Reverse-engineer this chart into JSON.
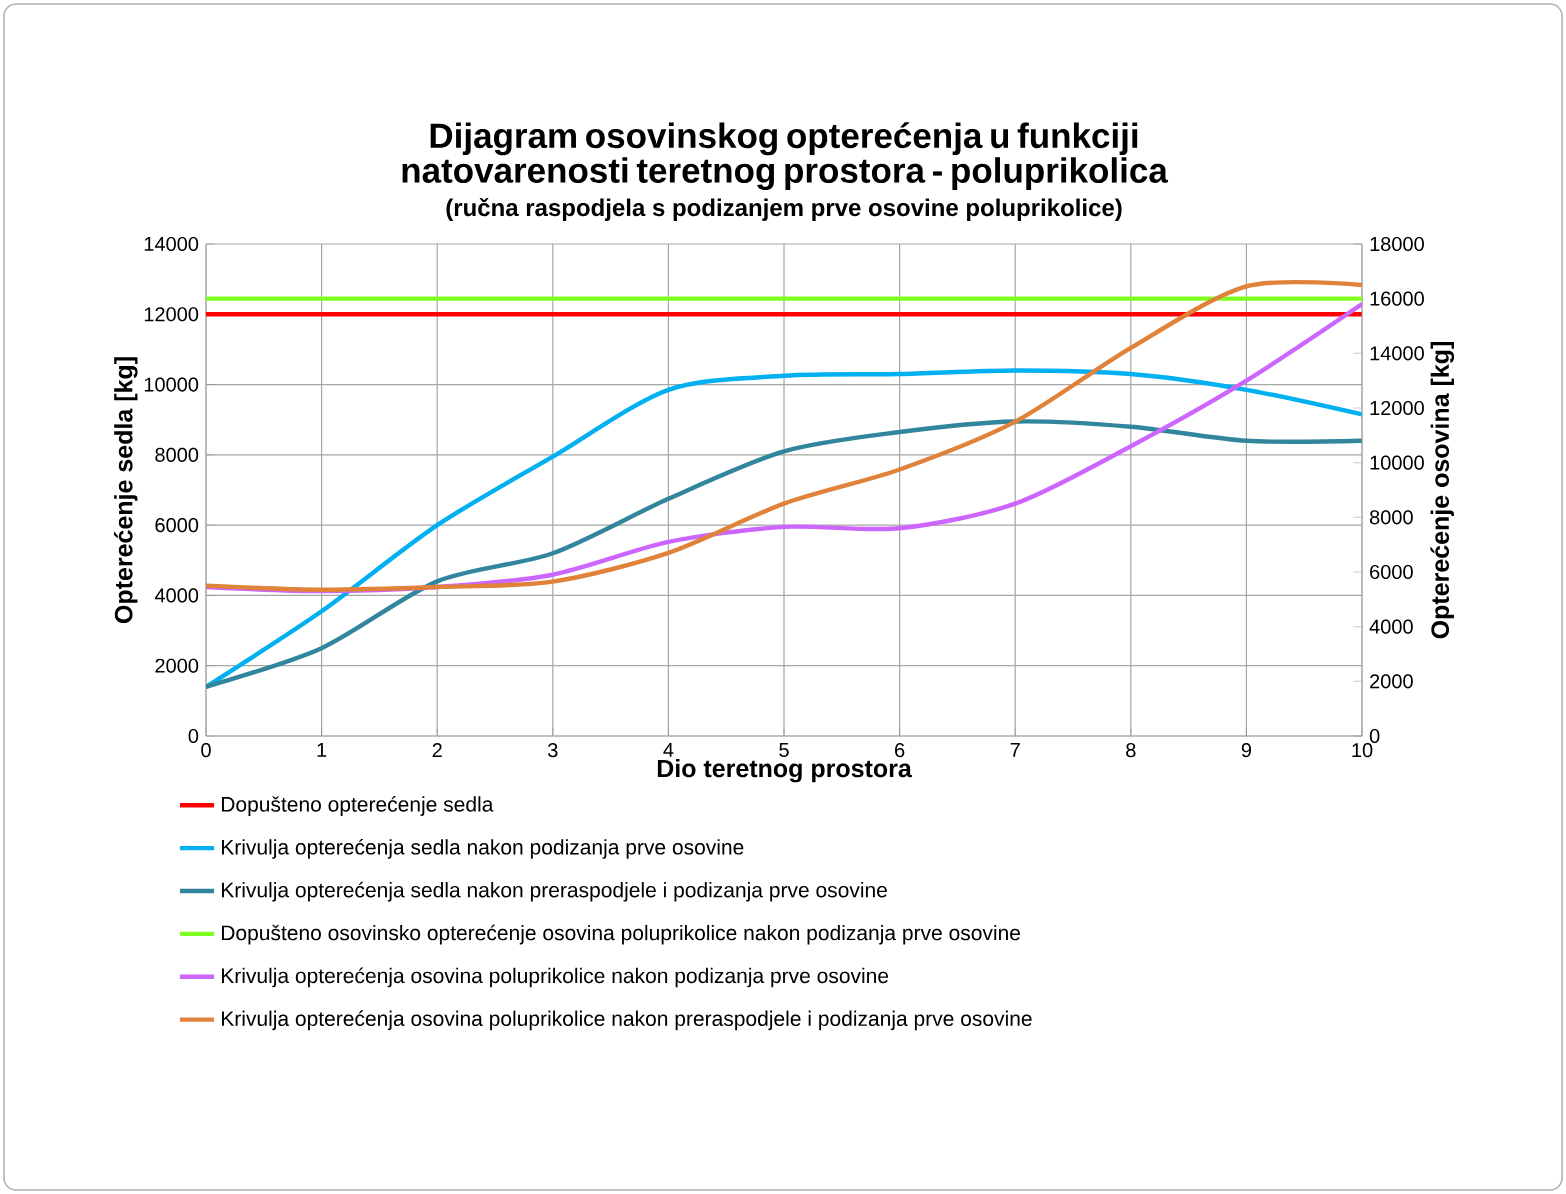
{
  "chart_data": {
    "type": "line",
    "title": "Dijagram osovinskog opterećenja u funkciji natovarenosti teretnog prostora - poluprikolica",
    "subtitle": "(ručna raspodjela s podizanjem prve osovine poluprikolice)",
    "xlabel": "Dio teretnog prostora",
    "ylabel": "Opterećenje sedla [kg]",
    "y2label": "Opterećenje osovina [kg]",
    "x": [
      0,
      1,
      2,
      3,
      4,
      5,
      6,
      7,
      8,
      9,
      10
    ],
    "xlim": [
      0,
      10
    ],
    "xticks": [
      0,
      1,
      2,
      3,
      4,
      5,
      6,
      7,
      8,
      9,
      10
    ],
    "ylim": [
      0,
      14000
    ],
    "yticks": [
      0,
      2000,
      4000,
      6000,
      8000,
      10000,
      12000,
      14000
    ],
    "y2lim": [
      0,
      18000
    ],
    "y2ticks": [
      0,
      2000,
      4000,
      6000,
      8000,
      10000,
      12000,
      14000,
      16000,
      18000
    ],
    "grid": true,
    "legend": "bottom",
    "marker": "none",
    "line_style": "solid",
    "series": [
      {
        "name": "Dopušteno opterećenje sedla",
        "color": "#ff0000",
        "values": [
          12000,
          12000,
          12000,
          12000,
          12000,
          12000,
          12000,
          12000,
          12000,
          12000,
          12000
        ]
      },
      {
        "name": "Krivulja opterećenja sedla nakon podizanja prve osovine",
        "color": "#00b0f0",
        "values": [
          1400,
          3550,
          6000,
          7950,
          9850,
          10250,
          10300,
          10400,
          10300,
          9850,
          9150
        ]
      },
      {
        "name": "Krivulja opterećenja sedla nakon preraspodjele i podizanja prve osovine",
        "color": "#31859c",
        "values": [
          1400,
          2500,
          4400,
          5200,
          6750,
          8100,
          8650,
          8950,
          8800,
          8400,
          8400
        ]
      },
      {
        "name": "Dopušteno osovinsko opterećenje osovina poluprikolice nakon podizanja prve osovine",
        "color": "#80ff20",
        "axis": "y2",
        "values": [
          16000,
          16000,
          16000,
          16000,
          16000,
          16000,
          16000,
          16000,
          16000,
          16000,
          16000
        ]
      },
      {
        "name": "Krivulja opterećenja osovina poluprikolice nakon podizanja prve osovine",
        "color": "#cc66ff",
        "axis": "y2",
        "values": [
          5450,
          5300,
          5450,
          5900,
          7100,
          7650,
          7600,
          8500,
          10600,
          13000,
          15800
        ]
      },
      {
        "name": "Krivulja opterećenja osovina poluprikolice nakon preraspodjele i podizanja prve osovine",
        "color": "#e0823a",
        "axis": "y2",
        "values": [
          5500,
          5350,
          5450,
          5650,
          6700,
          8500,
          9750,
          11500,
          14200,
          16450,
          16500
        ]
      }
    ]
  }
}
